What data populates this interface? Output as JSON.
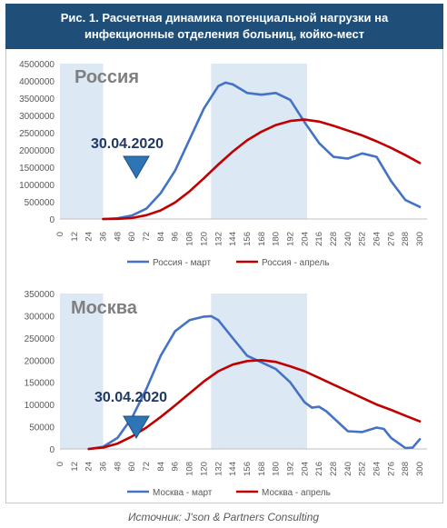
{
  "header": {
    "title": "Рис. 1. Расчетная динамика потенциальной нагрузки на инфекционные отделения больниц, койко-мест"
  },
  "source_caption": "Источник: J'son & Partners Consulting",
  "colors": {
    "header_bg": "#1f4e79",
    "march": "#4472c4",
    "april": "#c00000",
    "shade": "#dde8f5",
    "marker": "#2e75b6"
  },
  "chart_data": [
    {
      "type": "line",
      "title": "Россия",
      "annotation": "30.04.2020",
      "xlabel": "",
      "ylabel": "",
      "ylim": [
        0,
        4500000
      ],
      "yticks": [
        0,
        500000,
        1000000,
        1500000,
        2000000,
        2500000,
        3000000,
        3500000,
        4000000,
        4500000
      ],
      "xticks": [
        0,
        12,
        24,
        36,
        48,
        60,
        72,
        84,
        96,
        108,
        120,
        132,
        144,
        156,
        168,
        180,
        192,
        204,
        216,
        228,
        240,
        252,
        264,
        276,
        288,
        300
      ],
      "grid": false,
      "legend_position": "bottom",
      "shaded_ranges": [
        [
          0,
          36
        ],
        [
          126,
          206
        ]
      ],
      "series": [
        {
          "name": "Россия - март",
          "x": [
            36,
            48,
            60,
            72,
            84,
            96,
            108,
            120,
            132,
            138,
            144,
            156,
            168,
            180,
            192,
            204,
            216,
            228,
            240,
            252,
            264,
            276,
            288,
            300
          ],
          "values": [
            0,
            20000,
            100000,
            300000,
            750000,
            1400000,
            2300000,
            3200000,
            3850000,
            3950000,
            3900000,
            3650000,
            3600000,
            3650000,
            3450000,
            2800000,
            2200000,
            1800000,
            1750000,
            1900000,
            1800000,
            1100000,
            550000,
            350000
          ]
        },
        {
          "name": "Россия - апрель",
          "x": [
            36,
            48,
            60,
            72,
            84,
            96,
            108,
            120,
            132,
            144,
            156,
            168,
            180,
            192,
            204,
            216,
            228,
            240,
            252,
            264,
            276,
            288,
            300
          ],
          "values": [
            0,
            5000,
            30000,
            110000,
            250000,
            480000,
            800000,
            1180000,
            1580000,
            1950000,
            2280000,
            2530000,
            2720000,
            2840000,
            2880000,
            2820000,
            2700000,
            2560000,
            2420000,
            2250000,
            2060000,
            1850000,
            1620000
          ]
        }
      ]
    },
    {
      "type": "line",
      "title": "Москва",
      "annotation": "30.04.2020",
      "xlabel": "",
      "ylabel": "",
      "ylim": [
        0,
        350000
      ],
      "yticks": [
        0,
        50000,
        100000,
        150000,
        200000,
        250000,
        300000,
        350000
      ],
      "xticks": [
        0,
        12,
        24,
        36,
        48,
        60,
        72,
        84,
        96,
        108,
        120,
        132,
        144,
        156,
        168,
        180,
        192,
        204,
        216,
        228,
        240,
        252,
        264,
        276,
        288,
        300
      ],
      "grid": false,
      "legend_position": "bottom",
      "shaded_ranges": [
        [
          0,
          36
        ],
        [
          126,
          206
        ]
      ],
      "series": [
        {
          "name": "Москва - март",
          "x": [
            24,
            36,
            48,
            60,
            72,
            84,
            96,
            108,
            120,
            126,
            132,
            144,
            156,
            168,
            180,
            192,
            204,
            210,
            216,
            222,
            228,
            240,
            252,
            264,
            270,
            276,
            288,
            294,
            300
          ],
          "values": [
            0,
            5000,
            25000,
            70000,
            135000,
            210000,
            265000,
            290000,
            298000,
            299000,
            290000,
            250000,
            210000,
            195000,
            180000,
            150000,
            105000,
            93000,
            95000,
            85000,
            70000,
            40000,
            38000,
            48000,
            45000,
            25000,
            2000,
            3000,
            22000
          ]
        },
        {
          "name": "Москва - апрель",
          "x": [
            24,
            36,
            48,
            60,
            72,
            84,
            96,
            108,
            120,
            132,
            144,
            156,
            168,
            180,
            192,
            204,
            216,
            228,
            240,
            252,
            264,
            276,
            288,
            300
          ],
          "values": [
            0,
            3000,
            12000,
            28000,
            48000,
            72000,
            98000,
            125000,
            152000,
            175000,
            190000,
            198000,
            200000,
            196000,
            186000,
            175000,
            160000,
            145000,
            130000,
            115000,
            100000,
            88000,
            75000,
            62000
          ]
        }
      ]
    }
  ]
}
